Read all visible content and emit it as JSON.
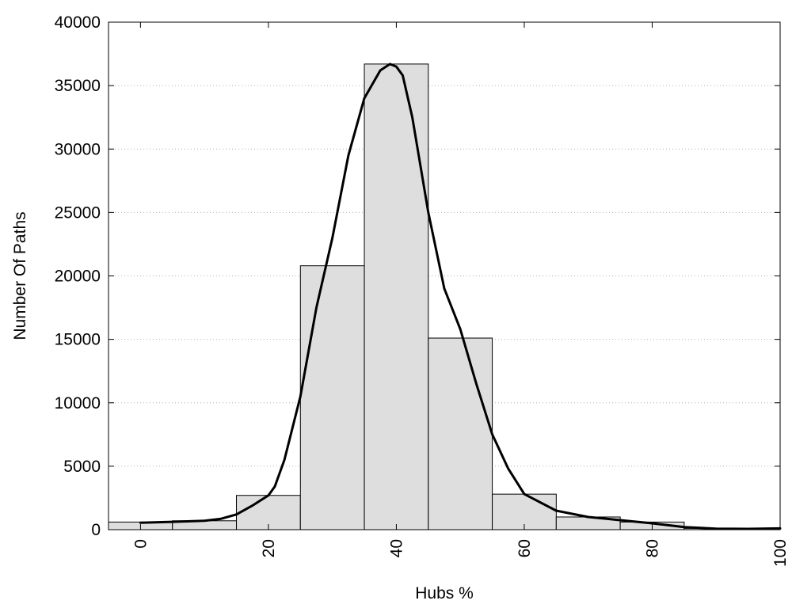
{
  "chart_data": {
    "type": "bar",
    "title": "",
    "xlabel": "Hubs %",
    "ylabel": "Number Of Paths",
    "xlim": [
      -5,
      100
    ],
    "ylim": [
      0,
      40000
    ],
    "x_ticks": [
      0,
      20,
      40,
      60,
      80,
      100
    ],
    "y_ticks": [
      0,
      5000,
      10000,
      15000,
      20000,
      25000,
      30000,
      35000,
      40000
    ],
    "grid": "horizontal dotted",
    "legend": "none",
    "bin_width": 10,
    "bars": {
      "centers": [
        0,
        10,
        20,
        30,
        40,
        50,
        60,
        70,
        80,
        90,
        100
      ],
      "values": [
        600,
        700,
        2700,
        20800,
        36700,
        15100,
        2800,
        1000,
        600,
        100,
        100
      ]
    },
    "curve": {
      "x": [
        0,
        5,
        10,
        12.5,
        15,
        17.5,
        20,
        21,
        22.5,
        25,
        27.5,
        30,
        32.5,
        35,
        37.5,
        39,
        40,
        41,
        42.5,
        45,
        47.5,
        50,
        52.5,
        55,
        57.5,
        60,
        65,
        70,
        75,
        80,
        85,
        90,
        95,
        100
      ],
      "y": [
        550,
        620,
        700,
        850,
        1200,
        1900,
        2700,
        3400,
        5500,
        10500,
        17500,
        23000,
        29500,
        34000,
        36200,
        36700,
        36500,
        35800,
        32500,
        25000,
        19000,
        15800,
        11500,
        7500,
        4800,
        2800,
        1500,
        1000,
        750,
        500,
        200,
        80,
        60,
        100
      ]
    },
    "colors": {
      "bar_fill": "#dedede",
      "bar_stroke": "#000000",
      "curve": "#000000",
      "grid": "#b0b0b0"
    }
  }
}
